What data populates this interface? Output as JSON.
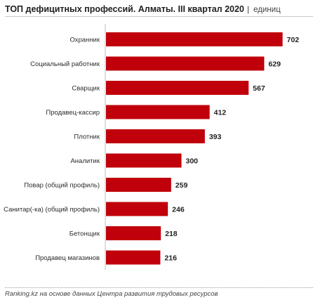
{
  "header": {
    "title": "ТОП дефицитных профессий. Алматы. III квартал 2020",
    "separator": "|",
    "unit": "единиц"
  },
  "source": "Ranking.kz на основе данных Центра развития трудовых ресурсов",
  "colors": {
    "bar": "#c0000a",
    "axis": "#bdbdbd"
  },
  "chart_data": {
    "type": "bar",
    "orientation": "horizontal",
    "title": "ТОП дефицитных профессий. Алматы. III квартал 2020",
    "unit": "единиц",
    "categories": [
      "Охранник",
      "Социальный работник",
      "Сварщик",
      "Продавец-кассир",
      "Плотник",
      "Аналитик",
      "Повар (общий профиль)",
      "Санитар(-ка) (общий профиль)",
      "Бетонщик",
      "Продавец магазинов"
    ],
    "values": [
      702,
      629,
      567,
      412,
      393,
      300,
      259,
      246,
      218,
      216
    ],
    "xlim": [
      0,
      720
    ],
    "grid": false,
    "legend": "none"
  }
}
